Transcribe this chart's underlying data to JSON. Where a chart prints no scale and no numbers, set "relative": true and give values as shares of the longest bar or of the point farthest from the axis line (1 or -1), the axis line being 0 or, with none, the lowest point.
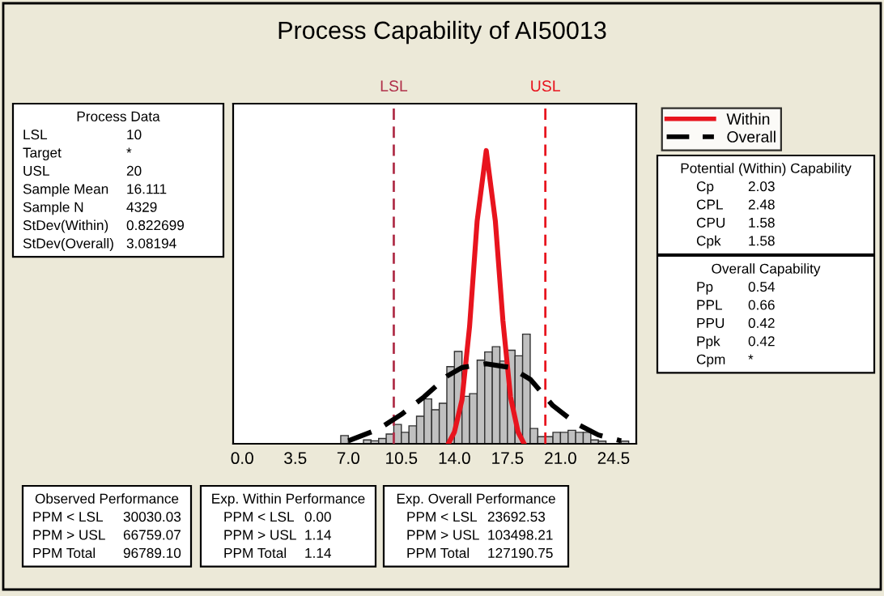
{
  "chart_data": {
    "type": "histogram",
    "title": "Process Capability of AI50013",
    "relative": true,
    "bins": [
      6.5,
      7.0,
      7.5,
      8.0,
      8.5,
      9.0,
      9.5,
      10.0,
      10.5,
      11.0,
      11.5,
      12.0,
      12.5,
      13.0,
      13.5,
      14.0,
      14.5,
      15.0,
      15.5,
      16.0,
      16.5,
      17.0,
      17.5,
      18.0,
      18.5,
      19.0,
      19.5,
      20.0,
      20.5,
      21.0,
      21.5,
      22.0,
      22.5,
      23.0,
      23.5,
      24.0,
      24.5,
      25.0,
      25.5
    ],
    "values": [
      0.028,
      0,
      0,
      0.013,
      0.01,
      0.018,
      0.033,
      0.066,
      0.039,
      0.061,
      0.094,
      0.153,
      0.116,
      0.138,
      0.263,
      0.315,
      0.162,
      0.171,
      0.285,
      0.313,
      0.331,
      0.282,
      0.319,
      0.3,
      0.374,
      0.052,
      0.024,
      0.024,
      0.039,
      0.039,
      0.046,
      0.039,
      0.039,
      0.013,
      0.009,
      null,
      0,
      0.009
    ],
    "color": "#c0c0c0",
    "series": [
      {
        "name": "Within",
        "type": "line",
        "color": "#e8141e",
        "line_style": "solid",
        "x": [
          13.6,
          14.0,
          14.5,
          15.0,
          15.5,
          16.1,
          16.7,
          17.2,
          17.7,
          18.2,
          18.6
        ],
        "values": [
          0,
          0.04,
          0.15,
          0.4,
          0.76,
          1,
          0.76,
          0.42,
          0.16,
          0.04,
          0
        ]
      },
      {
        "name": "Overall",
        "type": "line",
        "color": "#000000",
        "line_style": "dashed",
        "x": [
          7,
          9,
          10.5,
          12,
          13.5,
          14.5,
          16.1,
          17.7,
          19,
          20.5,
          22,
          23.5,
          25
        ],
        "values": [
          0.01,
          0.05,
          0.1,
          0.16,
          0.23,
          0.26,
          0.273,
          0.26,
          0.22,
          0.13,
          0.07,
          0.03,
          0.01
        ]
      }
    ],
    "xlim": [
      -0.6,
      26
    ],
    "xticks": [
      {
        "value": 0,
        "label": "0.0"
      },
      {
        "value": 3.5,
        "label": "3.5"
      },
      {
        "value": 7,
        "label": "7.0"
      },
      {
        "value": 10.5,
        "label": "10.5"
      },
      {
        "value": 14,
        "label": "14.0"
      },
      {
        "value": 17.5,
        "label": "17.5"
      },
      {
        "value": 21,
        "label": "21.0"
      },
      {
        "value": 24.5,
        "label": "24.5"
      }
    ],
    "ref_lines": [
      {
        "axis": "x",
        "value": 10,
        "label": "LSL",
        "color": "#b0304a",
        "line_style": "dashed"
      },
      {
        "axis": "x",
        "value": 20,
        "label": "USL",
        "color": "#e8141e",
        "line_style": "dashed"
      }
    ],
    "grid": false,
    "legend": "right",
    "annotations": [
      "Process Data\nLSL\t10\nTarget\t*\nUSL\t20\nSample Mean\t16.111\nSample N\t4329\nStDev(Within)\t0.822699\nStDev(Overall)\t3.08194",
      "Potential (Within) Capability\nCp\t2.03\nCPL\t2.48\nCPU\t1.58\nCpk\t1.58",
      "Overall Capability\nPp\t0.54\nPPL\t0.66\nPPU\t0.42\nPpk\t0.42\nCpm\t*",
      "Observed Performance\nPPM < LSL\t30030.03\nPPM > USL\t66759.07\nPPM Total\t96789.10",
      "Exp. Within Performance\nPPM < LSL\t0.00\nPPM > USL\t1.14\nPPM Total\t1.14",
      "Exp. Overall Performance\nPPM < LSL\t23692.53\nPPM > USL\t103498.21\nPPM Total\t127190.75"
    ]
  }
}
